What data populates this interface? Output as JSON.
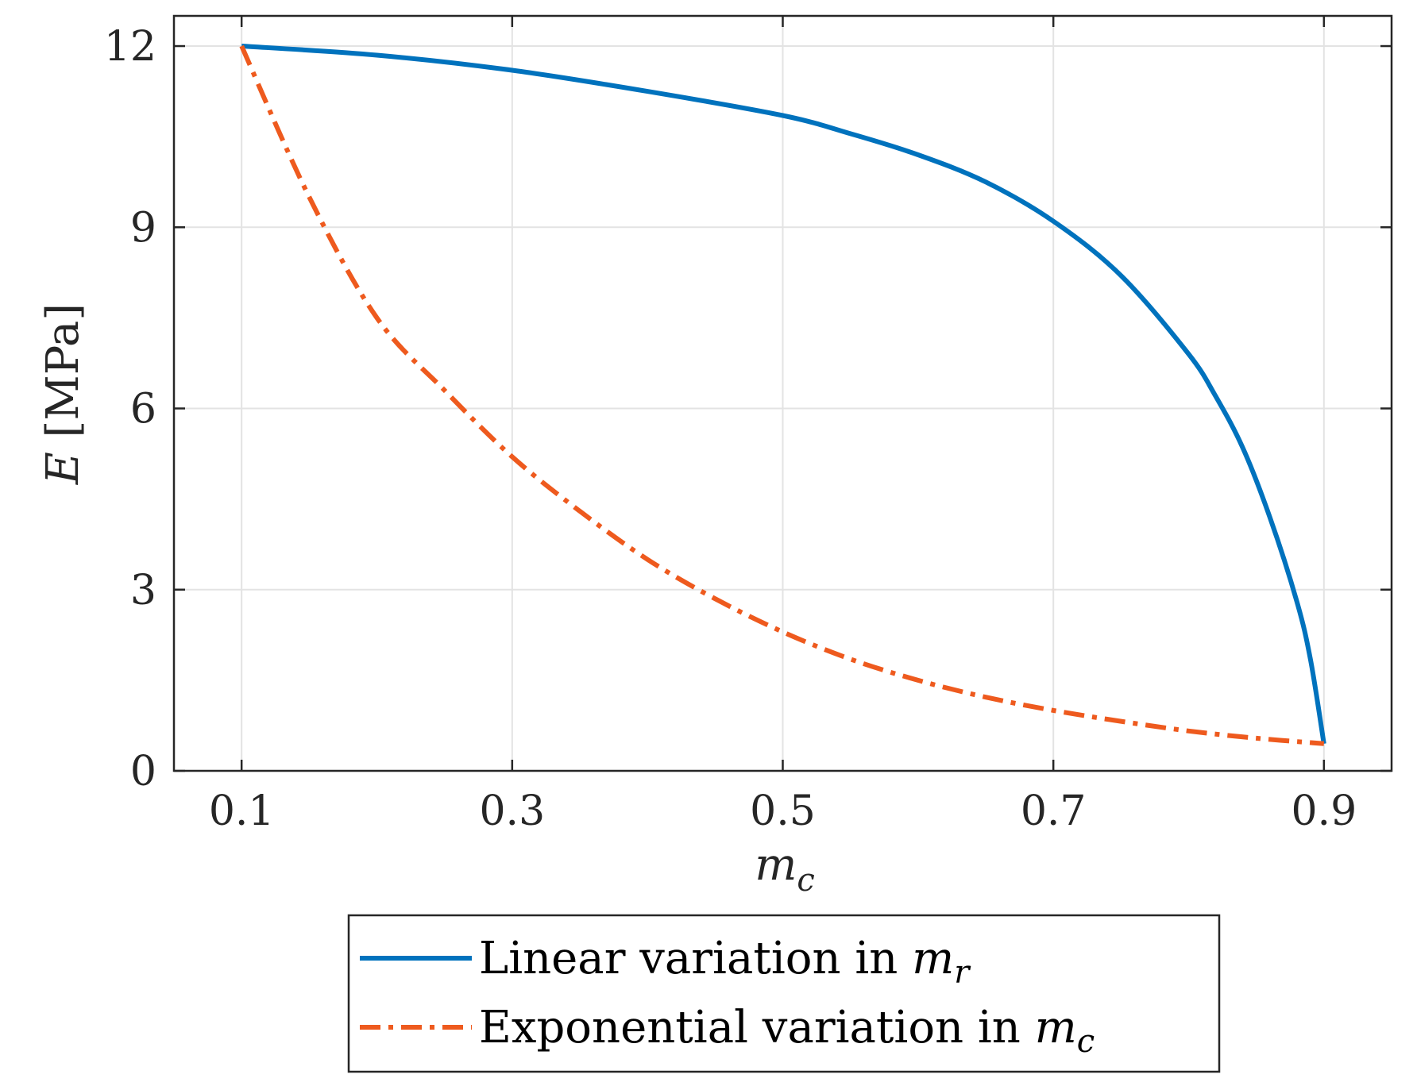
{
  "chart_data": {
    "type": "line",
    "title": "",
    "xlabel": "m",
    "xlabel_sub": "c",
    "ylabel_var": "E",
    "ylabel_unit": "[MPa]",
    "xlim": [
      0.05,
      0.95
    ],
    "ylim": [
      0,
      12.5
    ],
    "xticks": [
      0.1,
      0.3,
      0.5,
      0.7,
      0.9
    ],
    "xtick_labels": [
      "0.1",
      "0.3",
      "0.5",
      "0.7",
      "0.9"
    ],
    "yticks": [
      0,
      3,
      6,
      9,
      12
    ],
    "ytick_labels": [
      "0",
      "3",
      "6",
      "9",
      "12"
    ],
    "grid": true,
    "legend_position": "below",
    "series": [
      {
        "name": "Linear variation in m_r",
        "legend_text": "Linear variation in ",
        "legend_var": "m",
        "legend_sub": "r",
        "color": "#0072BD",
        "style": "solid",
        "x": [
          0.1,
          0.2,
          0.3,
          0.4,
          0.5,
          0.55,
          0.6,
          0.65,
          0.7,
          0.75,
          0.8,
          0.82,
          0.84,
          0.86,
          0.88,
          0.89,
          0.9
        ],
        "y": [
          12.0,
          11.85,
          11.6,
          11.25,
          10.85,
          10.55,
          10.2,
          9.75,
          9.1,
          8.2,
          6.9,
          6.2,
          5.35,
          4.2,
          2.8,
          1.85,
          0.45
        ]
      },
      {
        "name": "Exponential variation in m_c",
        "legend_text": "Exponential variation in ",
        "legend_var": "m",
        "legend_sub": "c",
        "color": "#EE5A1E",
        "style": "dashdot",
        "x": [
          0.1,
          0.15,
          0.2,
          0.25,
          0.3,
          0.35,
          0.4,
          0.45,
          0.5,
          0.55,
          0.6,
          0.65,
          0.7,
          0.75,
          0.8,
          0.85,
          0.9
        ],
        "y": [
          12.0,
          9.5,
          7.5,
          6.3,
          5.2,
          4.3,
          3.5,
          2.85,
          2.3,
          1.85,
          1.5,
          1.22,
          1.0,
          0.82,
          0.66,
          0.54,
          0.45
        ]
      }
    ]
  }
}
